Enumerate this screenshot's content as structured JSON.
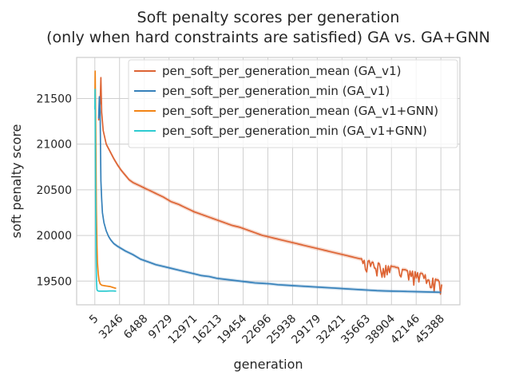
{
  "chart_data": {
    "type": "line",
    "title_lines": [
      "Soft penalty scores per generation",
      "(only when hard constraints are satisfied) GA vs. GA+GNN"
    ],
    "xlabel": "generation",
    "ylabel": "soft penalty score",
    "xlim": [
      -2380,
      47880
    ],
    "ylim": [
      19240,
      21950
    ],
    "x_ticks": [
      5,
      3246,
      6488,
      9729,
      12971,
      16213,
      19454,
      22696,
      25938,
      29179,
      32421,
      35663,
      38904,
      42146,
      45388
    ],
    "y_ticks": [
      19500,
      20000,
      20500,
      21000,
      21500
    ],
    "grid": true,
    "legend_position": "top-right",
    "series": [
      {
        "name": "pen_soft_per_generation_mean (GA_v1)",
        "color": "#dd6434",
        "points": [
          [
            500,
            21260
          ],
          [
            700,
            21450
          ],
          [
            800,
            21730
          ],
          [
            900,
            21350
          ],
          [
            1100,
            21150
          ],
          [
            1500,
            21000
          ],
          [
            2000,
            20920
          ],
          [
            2500,
            20840
          ],
          [
            3000,
            20770
          ],
          [
            3500,
            20710
          ],
          [
            4000,
            20660
          ],
          [
            4500,
            20610
          ],
          [
            5000,
            20580
          ],
          [
            6000,
            20540
          ],
          [
            7000,
            20500
          ],
          [
            8000,
            20460
          ],
          [
            9000,
            20420
          ],
          [
            10000,
            20370
          ],
          [
            11000,
            20340
          ],
          [
            12000,
            20300
          ],
          [
            13000,
            20260
          ],
          [
            14000,
            20230
          ],
          [
            15000,
            20200
          ],
          [
            16000,
            20170
          ],
          [
            17000,
            20140
          ],
          [
            18000,
            20110
          ],
          [
            19000,
            20090
          ],
          [
            20000,
            20060
          ],
          [
            21000,
            20030
          ],
          [
            22000,
            20000
          ],
          [
            23000,
            19980
          ],
          [
            24000,
            19960
          ],
          [
            25000,
            19940
          ],
          [
            26000,
            19920
          ],
          [
            27000,
            19900
          ],
          [
            28000,
            19880
          ],
          [
            29000,
            19860
          ],
          [
            30000,
            19840
          ],
          [
            31000,
            19820
          ],
          [
            32000,
            19800
          ],
          [
            33000,
            19780
          ],
          [
            34000,
            19760
          ],
          [
            35000,
            19740
          ],
          [
            36000,
            19720
          ],
          [
            37000,
            19700
          ],
          [
            38000,
            19680
          ],
          [
            39000,
            19660
          ],
          [
            40000,
            19640
          ],
          [
            41000,
            19620
          ],
          [
            42000,
            19600
          ],
          [
            43000,
            19580
          ],
          [
            44000,
            19550
          ],
          [
            45000,
            19510
          ],
          [
            45500,
            19460
          ]
        ],
        "band": 22,
        "noise_from": 35000
      },
      {
        "name": "pen_soft_per_generation_min (GA_v1)",
        "color": "#3681ba",
        "points": [
          [
            500,
            21280
          ],
          [
            600,
            21520
          ],
          [
            700,
            21350
          ],
          [
            800,
            20600
          ],
          [
            900,
            20400
          ],
          [
            1000,
            20250
          ],
          [
            1200,
            20140
          ],
          [
            1500,
            20050
          ],
          [
            1800,
            19990
          ],
          [
            2100,
            19950
          ],
          [
            2500,
            19910
          ],
          [
            3000,
            19880
          ],
          [
            4000,
            19830
          ],
          [
            5000,
            19790
          ],
          [
            6000,
            19740
          ],
          [
            7000,
            19710
          ],
          [
            8000,
            19680
          ],
          [
            9000,
            19660
          ],
          [
            10000,
            19640
          ],
          [
            11000,
            19620
          ],
          [
            12000,
            19600
          ],
          [
            13000,
            19580
          ],
          [
            14000,
            19560
          ],
          [
            15000,
            19550
          ],
          [
            16000,
            19530
          ],
          [
            17000,
            19520
          ],
          [
            18000,
            19510
          ],
          [
            19000,
            19500
          ],
          [
            20000,
            19490
          ],
          [
            21000,
            19480
          ],
          [
            22000,
            19475
          ],
          [
            23000,
            19470
          ],
          [
            24000,
            19460
          ],
          [
            25000,
            19455
          ],
          [
            26000,
            19450
          ],
          [
            27000,
            19445
          ],
          [
            28000,
            19440
          ],
          [
            29000,
            19435
          ],
          [
            30000,
            19430
          ],
          [
            31000,
            19425
          ],
          [
            32000,
            19420
          ],
          [
            33000,
            19415
          ],
          [
            34000,
            19410
          ],
          [
            35000,
            19405
          ],
          [
            36000,
            19400
          ],
          [
            37000,
            19395
          ],
          [
            38000,
            19392
          ],
          [
            39000,
            19390
          ],
          [
            40000,
            19388
          ],
          [
            41000,
            19386
          ],
          [
            42000,
            19384
          ],
          [
            43000,
            19382
          ],
          [
            44000,
            19380
          ],
          [
            45000,
            19378
          ],
          [
            45400,
            19376
          ]
        ],
        "band": 18,
        "noise_from": null
      },
      {
        "name": "pen_soft_per_generation_mean (GA_v1+GNN)",
        "color": "#f28415",
        "points": [
          [
            5,
            21400
          ],
          [
            50,
            21800
          ],
          [
            120,
            21200
          ],
          [
            200,
            20300
          ],
          [
            280,
            19900
          ],
          [
            350,
            19700
          ],
          [
            450,
            19580
          ],
          [
            550,
            19510
          ],
          [
            700,
            19470
          ],
          [
            900,
            19455
          ],
          [
            1200,
            19450
          ],
          [
            1600,
            19445
          ],
          [
            2000,
            19440
          ],
          [
            2400,
            19430
          ],
          [
            2800,
            19420
          ]
        ],
        "band": 8,
        "noise_from": null
      },
      {
        "name": "pen_soft_per_generation_min (GA_v1+GNN)",
        "color": "#2ecbd1",
        "points": [
          [
            5,
            21380
          ],
          [
            40,
            21600
          ],
          [
            100,
            20500
          ],
          [
            160,
            19800
          ],
          [
            220,
            19500
          ],
          [
            280,
            19410
          ],
          [
            350,
            19395
          ],
          [
            500,
            19390
          ],
          [
            1000,
            19390
          ],
          [
            1500,
            19390
          ],
          [
            2000,
            19392
          ],
          [
            2400,
            19392
          ],
          [
            2800,
            19390
          ]
        ],
        "band": 0,
        "noise_from": null
      }
    ]
  }
}
